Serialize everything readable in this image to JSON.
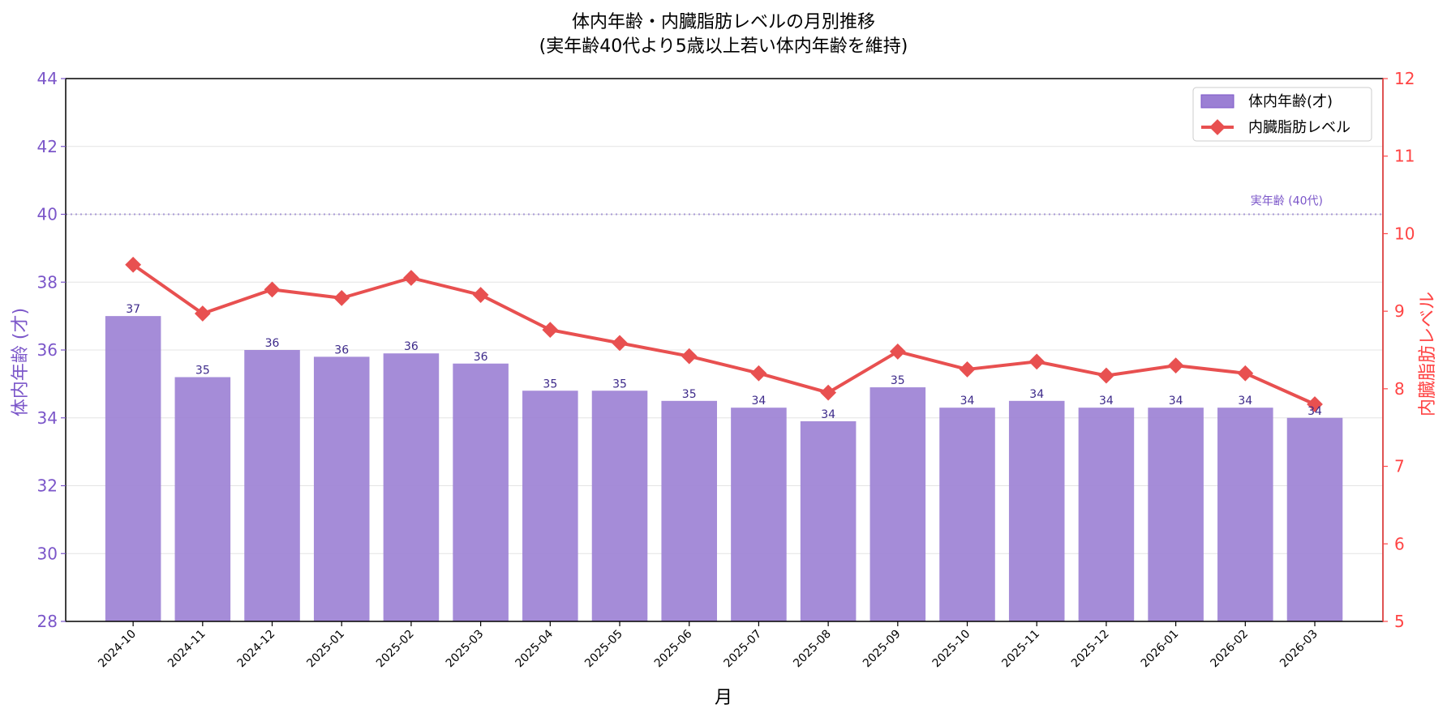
{
  "chart_data": {
    "type": "bar",
    "title_line1": "体内年齢・内臓脂肪レベルの月別推移",
    "title_line2": "(実年齢40代より5歳以上若い体内年齢を維持)",
    "xlabel": "月",
    "ylabel_left": "体内年齢 (才)",
    "ylabel_right": "内臓脂肪レベル",
    "ylim_left": [
      28,
      44
    ],
    "yticks_left": [
      28,
      30,
      32,
      34,
      36,
      38,
      40,
      42,
      44
    ],
    "ylim_right": [
      5,
      12
    ],
    "yticks_right": [
      5,
      6,
      7,
      8,
      9,
      10,
      11,
      12
    ],
    "grid": "horizontal",
    "legend_position": "top-right",
    "reference_line": {
      "value": 40,
      "label": "実年齢 (40代)",
      "style": "dotted"
    },
    "categories": [
      "2024-10",
      "2024-11",
      "2024-12",
      "2025-01",
      "2025-02",
      "2025-03",
      "2025-04",
      "2025-05",
      "2025-06",
      "2025-07",
      "2025-08",
      "2025-09",
      "2025-10",
      "2025-11",
      "2025-12",
      "2026-01",
      "2026-02",
      "2026-03"
    ],
    "series": [
      {
        "name": "体内年齢(才)",
        "axis": "left",
        "kind": "bar",
        "color": "#9b7fd4",
        "values": [
          37.0,
          35.2,
          36.0,
          35.8,
          35.9,
          35.6,
          34.8,
          34.8,
          34.5,
          34.3,
          33.9,
          34.9,
          34.3,
          34.5,
          34.3,
          34.3,
          34.3,
          34.0
        ],
        "data_labels": [
          "37",
          "35",
          "36",
          "36",
          "36",
          "36",
          "35",
          "35",
          "35",
          "34",
          "34",
          "35",
          "34",
          "34",
          "34",
          "34",
          "34",
          "34"
        ]
      },
      {
        "name": "内臓脂肪レベル",
        "axis": "right",
        "kind": "line",
        "color": "#e85050",
        "values": [
          9.6,
          8.97,
          9.28,
          9.17,
          9.43,
          9.21,
          8.76,
          8.59,
          8.42,
          8.2,
          7.95,
          8.48,
          8.25,
          8.35,
          8.17,
          8.3,
          8.2,
          7.8
        ]
      }
    ],
    "colors": {
      "left_axis": "#7b56c9",
      "right_axis": "#ff4444",
      "label_text": "#3d2a8a",
      "reference": "#a89ad6",
      "grid": "#e4e4e4"
    }
  }
}
